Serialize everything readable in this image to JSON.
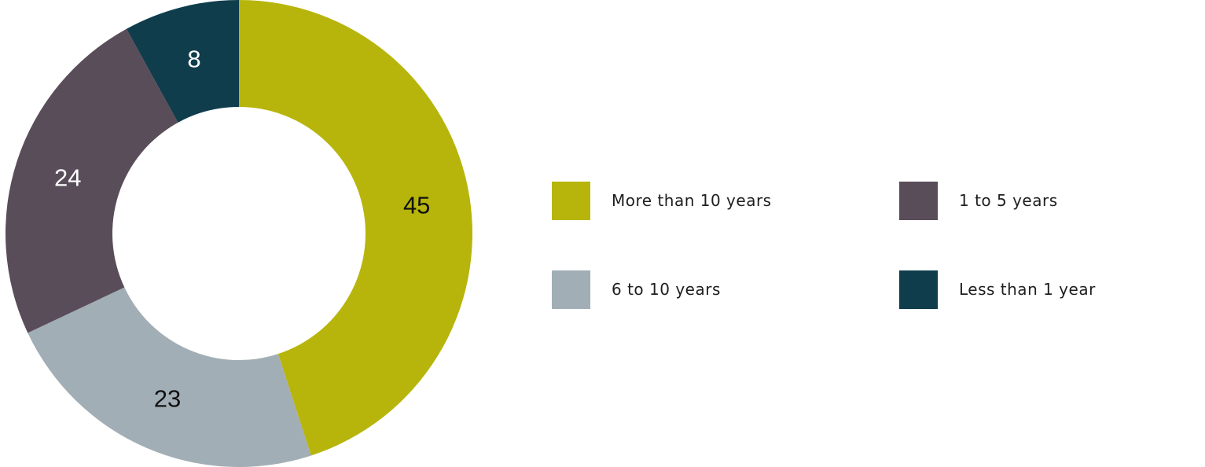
{
  "chart_data": {
    "type": "pie",
    "donut": true,
    "title": "",
    "categories": [
      "More than 10 years",
      "6 to 10 years",
      "1 to 5 years",
      "Less than 1 year"
    ],
    "values": [
      45,
      23,
      24,
      8
    ],
    "data_labels": [
      "45",
      "23",
      "24",
      "8"
    ],
    "colors": [
      "#b7b50b",
      "#a2aeb5",
      "#5a4d5a",
      "#0f3d4c"
    ],
    "label_colors": [
      "#111111",
      "#111111",
      "#ffffff",
      "#ffffff"
    ],
    "legend": {
      "placement": "right",
      "entries": [
        {
          "label": "More than 10 years",
          "color": "#b7b50b"
        },
        {
          "label": "1 to 5 years",
          "color": "#5a4d5a"
        },
        {
          "label": "6 to 10 years",
          "color": "#a2aeb5"
        },
        {
          "label": "Less than 1 year",
          "color": "#0f3d4c"
        }
      ]
    }
  }
}
